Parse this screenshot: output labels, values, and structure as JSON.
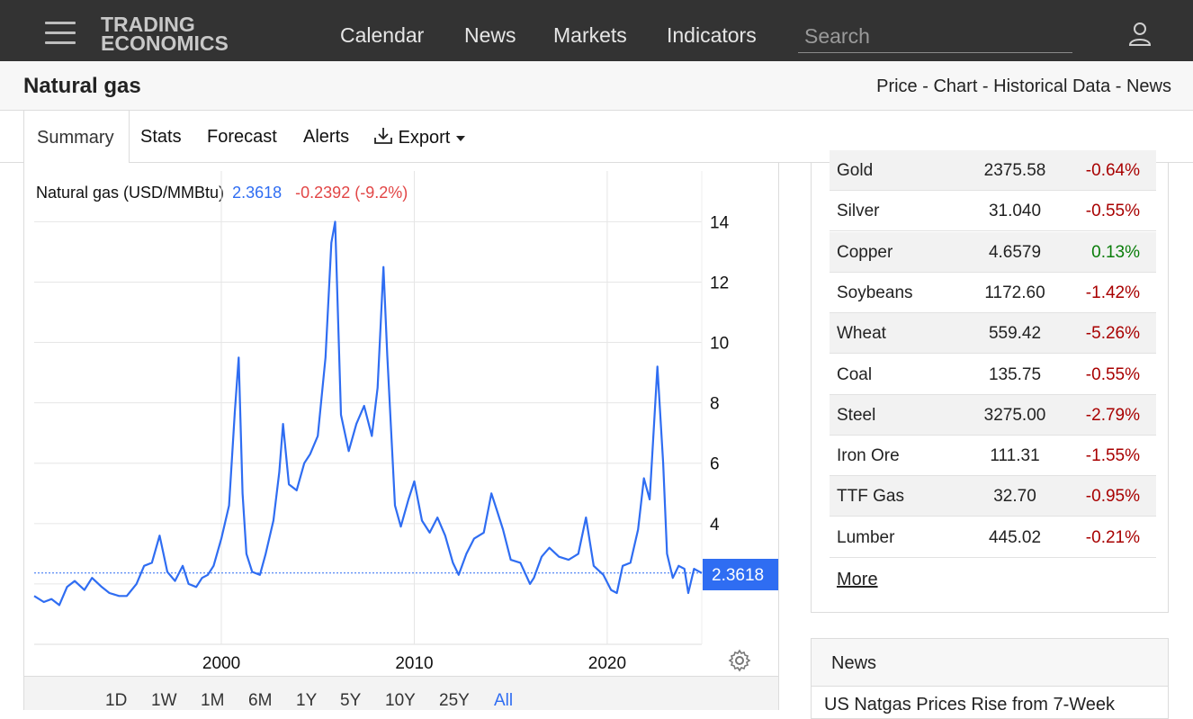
{
  "header": {
    "logo_line1": "TRADING",
    "logo_line2": "ECONOMICS",
    "nav": [
      "Calendar",
      "News",
      "Markets",
      "Indicators"
    ],
    "search_placeholder": "Search"
  },
  "titlebar": {
    "title": "Natural gas",
    "crumbs": [
      "Price",
      "Chart",
      "Historical Data",
      "News"
    ],
    "separator": " - "
  },
  "tabs": {
    "items": [
      "Summary",
      "Stats",
      "Forecast",
      "Alerts",
      "Export"
    ],
    "active": "Summary"
  },
  "chart": {
    "label": "Natural gas (USD/MMBtu)",
    "price": "2.3618",
    "change": "-0.2392 (-9.2%)",
    "price_tag": "2.3618",
    "ranges": [
      "1D",
      "1W",
      "1M",
      "6M",
      "1Y",
      "5Y",
      "10Y",
      "25Y",
      "All"
    ],
    "active_range": "All"
  },
  "chart_data": {
    "type": "line",
    "title": "Natural gas (USD/MMBtu)",
    "xlabel": "",
    "ylabel": "",
    "x_ticks": [
      2000,
      2010,
      2020
    ],
    "y_ticks": [
      4,
      6,
      8,
      10,
      12,
      14
    ],
    "xlim": [
      1990.3,
      2024.9
    ],
    "ylim": [
      0,
      14.1
    ],
    "last_value": 2.3618,
    "grid": true,
    "series": [
      {
        "color": "#2f6df2",
        "x": [
          1990.3,
          1990.8,
          1991.2,
          1991.6,
          1992.0,
          1992.4,
          1992.9,
          1993.3,
          1993.8,
          1994.2,
          1994.7,
          1995.1,
          1995.6,
          1996.0,
          1996.4,
          1996.8,
          1997.2,
          1997.6,
          1998.0,
          1998.3,
          1998.7,
          1999.0,
          1999.3,
          1999.6,
          2000.0,
          2000.4,
          2000.7,
          2000.9,
          2001.1,
          2001.3,
          2001.6,
          2002.0,
          2002.3,
          2002.7,
          2003.0,
          2003.2,
          2003.5,
          2003.9,
          2004.3,
          2004.6,
          2005.0,
          2005.4,
          2005.7,
          2005.9,
          2006.2,
          2006.6,
          2007.0,
          2007.4,
          2007.8,
          2008.1,
          2008.4,
          2008.6,
          2009.0,
          2009.3,
          2009.7,
          2010.0,
          2010.4,
          2010.8,
          2011.2,
          2011.6,
          2012.0,
          2012.3,
          2012.7,
          2013.1,
          2013.6,
          2014.0,
          2014.3,
          2014.6,
          2015.0,
          2015.5,
          2016.0,
          2016.2,
          2016.6,
          2017.0,
          2017.5,
          2018.0,
          2018.5,
          2018.9,
          2019.3,
          2019.8,
          2020.2,
          2020.5,
          2020.8,
          2021.2,
          2021.6,
          2021.9,
          2022.2,
          2022.6,
          2022.9,
          2023.1,
          2023.4,
          2023.7,
          2024.0,
          2024.2,
          2024.5,
          2024.9
        ],
        "y": [
          1.6,
          1.4,
          1.5,
          1.3,
          1.9,
          2.1,
          1.8,
          2.2,
          1.9,
          1.7,
          1.6,
          1.6,
          2.0,
          2.6,
          2.7,
          3.6,
          2.4,
          2.1,
          2.6,
          2.0,
          1.9,
          2.2,
          2.3,
          2.6,
          3.5,
          4.6,
          7.7,
          9.5,
          5.0,
          3.0,
          2.4,
          2.3,
          3.0,
          4.1,
          5.7,
          7.3,
          5.3,
          5.1,
          6.0,
          6.3,
          6.9,
          9.5,
          13.3,
          14.0,
          7.6,
          6.4,
          7.3,
          7.9,
          6.9,
          8.5,
          12.5,
          9.6,
          4.6,
          3.9,
          4.8,
          5.4,
          4.1,
          3.7,
          4.2,
          3.6,
          2.7,
          2.3,
          3.0,
          3.5,
          3.7,
          5.0,
          4.4,
          3.8,
          2.8,
          2.7,
          2.0,
          2.2,
          2.9,
          3.2,
          2.9,
          2.8,
          3.0,
          4.2,
          2.6,
          2.3,
          1.8,
          1.7,
          2.6,
          2.7,
          3.8,
          5.5,
          4.8,
          9.2,
          6.0,
          3.0,
          2.2,
          2.6,
          2.5,
          1.7,
          2.5,
          2.36
        ]
      }
    ]
  },
  "commodities": [
    {
      "name": "Gold",
      "price": "2375.58",
      "change": "-0.64%"
    },
    {
      "name": "Silver",
      "price": "31.040",
      "change": "-0.55%"
    },
    {
      "name": "Copper",
      "price": "4.6579",
      "change": "0.13%"
    },
    {
      "name": "Soybeans",
      "price": "1172.60",
      "change": "-1.42%"
    },
    {
      "name": "Wheat",
      "price": "559.42",
      "change": "-5.26%"
    },
    {
      "name": "Coal",
      "price": "135.75",
      "change": "-0.55%"
    },
    {
      "name": "Steel",
      "price": "3275.00",
      "change": "-2.79%"
    },
    {
      "name": "Iron Ore",
      "price": "111.31",
      "change": "-1.55%"
    },
    {
      "name": "TTF Gas",
      "price": "32.70",
      "change": "-0.95%"
    },
    {
      "name": "Lumber",
      "price": "445.02",
      "change": "-0.21%"
    }
  ],
  "more_label": "More",
  "news": {
    "heading": "News",
    "first_item": "US Natgas Prices Rise from 7-Week"
  },
  "colors": {
    "topbar": "#333333",
    "accent": "#2f6df2",
    "negative": "#a80000",
    "positive": "#0a7d0a",
    "change_red": "#e24646"
  }
}
